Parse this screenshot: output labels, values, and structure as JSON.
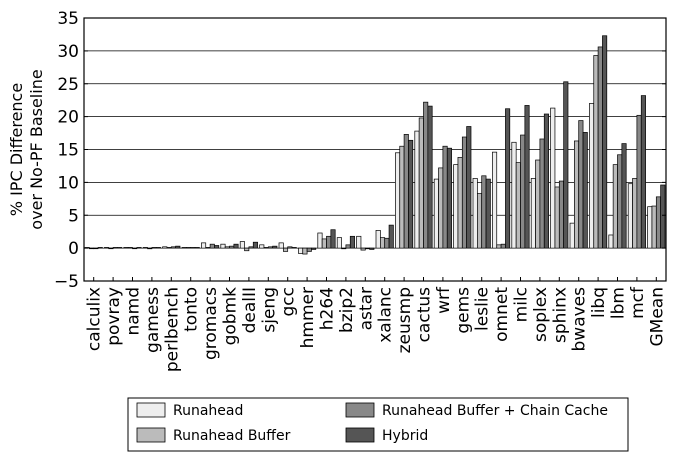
{
  "chart_data": {
    "type": "bar",
    "ylabel_lines": [
      "% IPC Difference",
      "over No-PF Baseline"
    ],
    "xlabel": "",
    "ylim": [
      -5,
      35
    ],
    "yticks": [
      -5,
      0,
      5,
      10,
      15,
      20,
      25,
      30,
      35
    ],
    "ytick_labels": [
      "−5",
      "0",
      "5",
      "10",
      "15",
      "20",
      "25",
      "30",
      "35"
    ],
    "grid": "horizontal",
    "legend_position": "bottom",
    "categories": [
      "calculix",
      "povray",
      "namd",
      "gamess",
      "perlbench",
      "tonto",
      "gromacs",
      "gobmk",
      "dealII",
      "sjeng",
      "gcc",
      "hmmer",
      "h264",
      "bzip2",
      "astar",
      "xalanc",
      "zeusmp",
      "cactus",
      "wrf",
      "gems",
      "leslie",
      "omnet",
      "milc",
      "soplex",
      "sphinx",
      "bwaves",
      "libq",
      "lbm",
      "mcf",
      "GMean"
    ],
    "series": [
      {
        "name": "Runahead",
        "color": "#eeeeee",
        "values": [
          0.1,
          0.1,
          0.1,
          0.1,
          0.2,
          0.1,
          0.8,
          0.6,
          1.0,
          0.5,
          0.8,
          -0.8,
          2.3,
          1.6,
          1.8,
          2.7,
          14.5,
          17.8,
          10.5,
          12.7,
          10.6,
          14.6,
          16.1,
          10.6,
          21.3,
          3.8,
          22.0,
          2.0,
          9.8,
          6.3
        ]
      },
      {
        "name": "Runahead Buffer",
        "color": "#bbbbbb",
        "values": [
          0.0,
          0.0,
          0.1,
          -0.1,
          0.1,
          0.1,
          0.1,
          0.2,
          -0.4,
          0.1,
          -0.5,
          -0.9,
          1.4,
          -0.1,
          -0.3,
          1.6,
          15.5,
          19.8,
          12.2,
          13.8,
          8.3,
          0.5,
          13.0,
          13.4,
          9.3,
          16.3,
          29.3,
          12.7,
          10.6,
          6.4
        ]
      },
      {
        "name": "Runahead Buffer + Chain Cache",
        "color": "#888888",
        "values": [
          0.0,
          0.1,
          0.0,
          0.1,
          0.2,
          0.1,
          0.6,
          0.3,
          0.2,
          0.2,
          0.2,
          -0.5,
          1.8,
          0.5,
          -0.1,
          1.5,
          17.3,
          22.2,
          15.5,
          16.9,
          11.0,
          0.6,
          17.2,
          16.6,
          10.2,
          19.4,
          30.6,
          14.2,
          20.2,
          7.8
        ]
      },
      {
        "name": "Hybrid",
        "color": "#555555",
        "values": [
          0.1,
          0.1,
          0.1,
          0.1,
          0.3,
          0.1,
          0.4,
          0.6,
          0.9,
          0.3,
          0.1,
          -0.2,
          2.8,
          1.8,
          -0.2,
          3.5,
          16.4,
          21.6,
          15.2,
          18.5,
          10.5,
          21.2,
          21.7,
          20.4,
          25.3,
          17.6,
          32.3,
          15.9,
          23.2,
          9.6
        ]
      }
    ]
  }
}
